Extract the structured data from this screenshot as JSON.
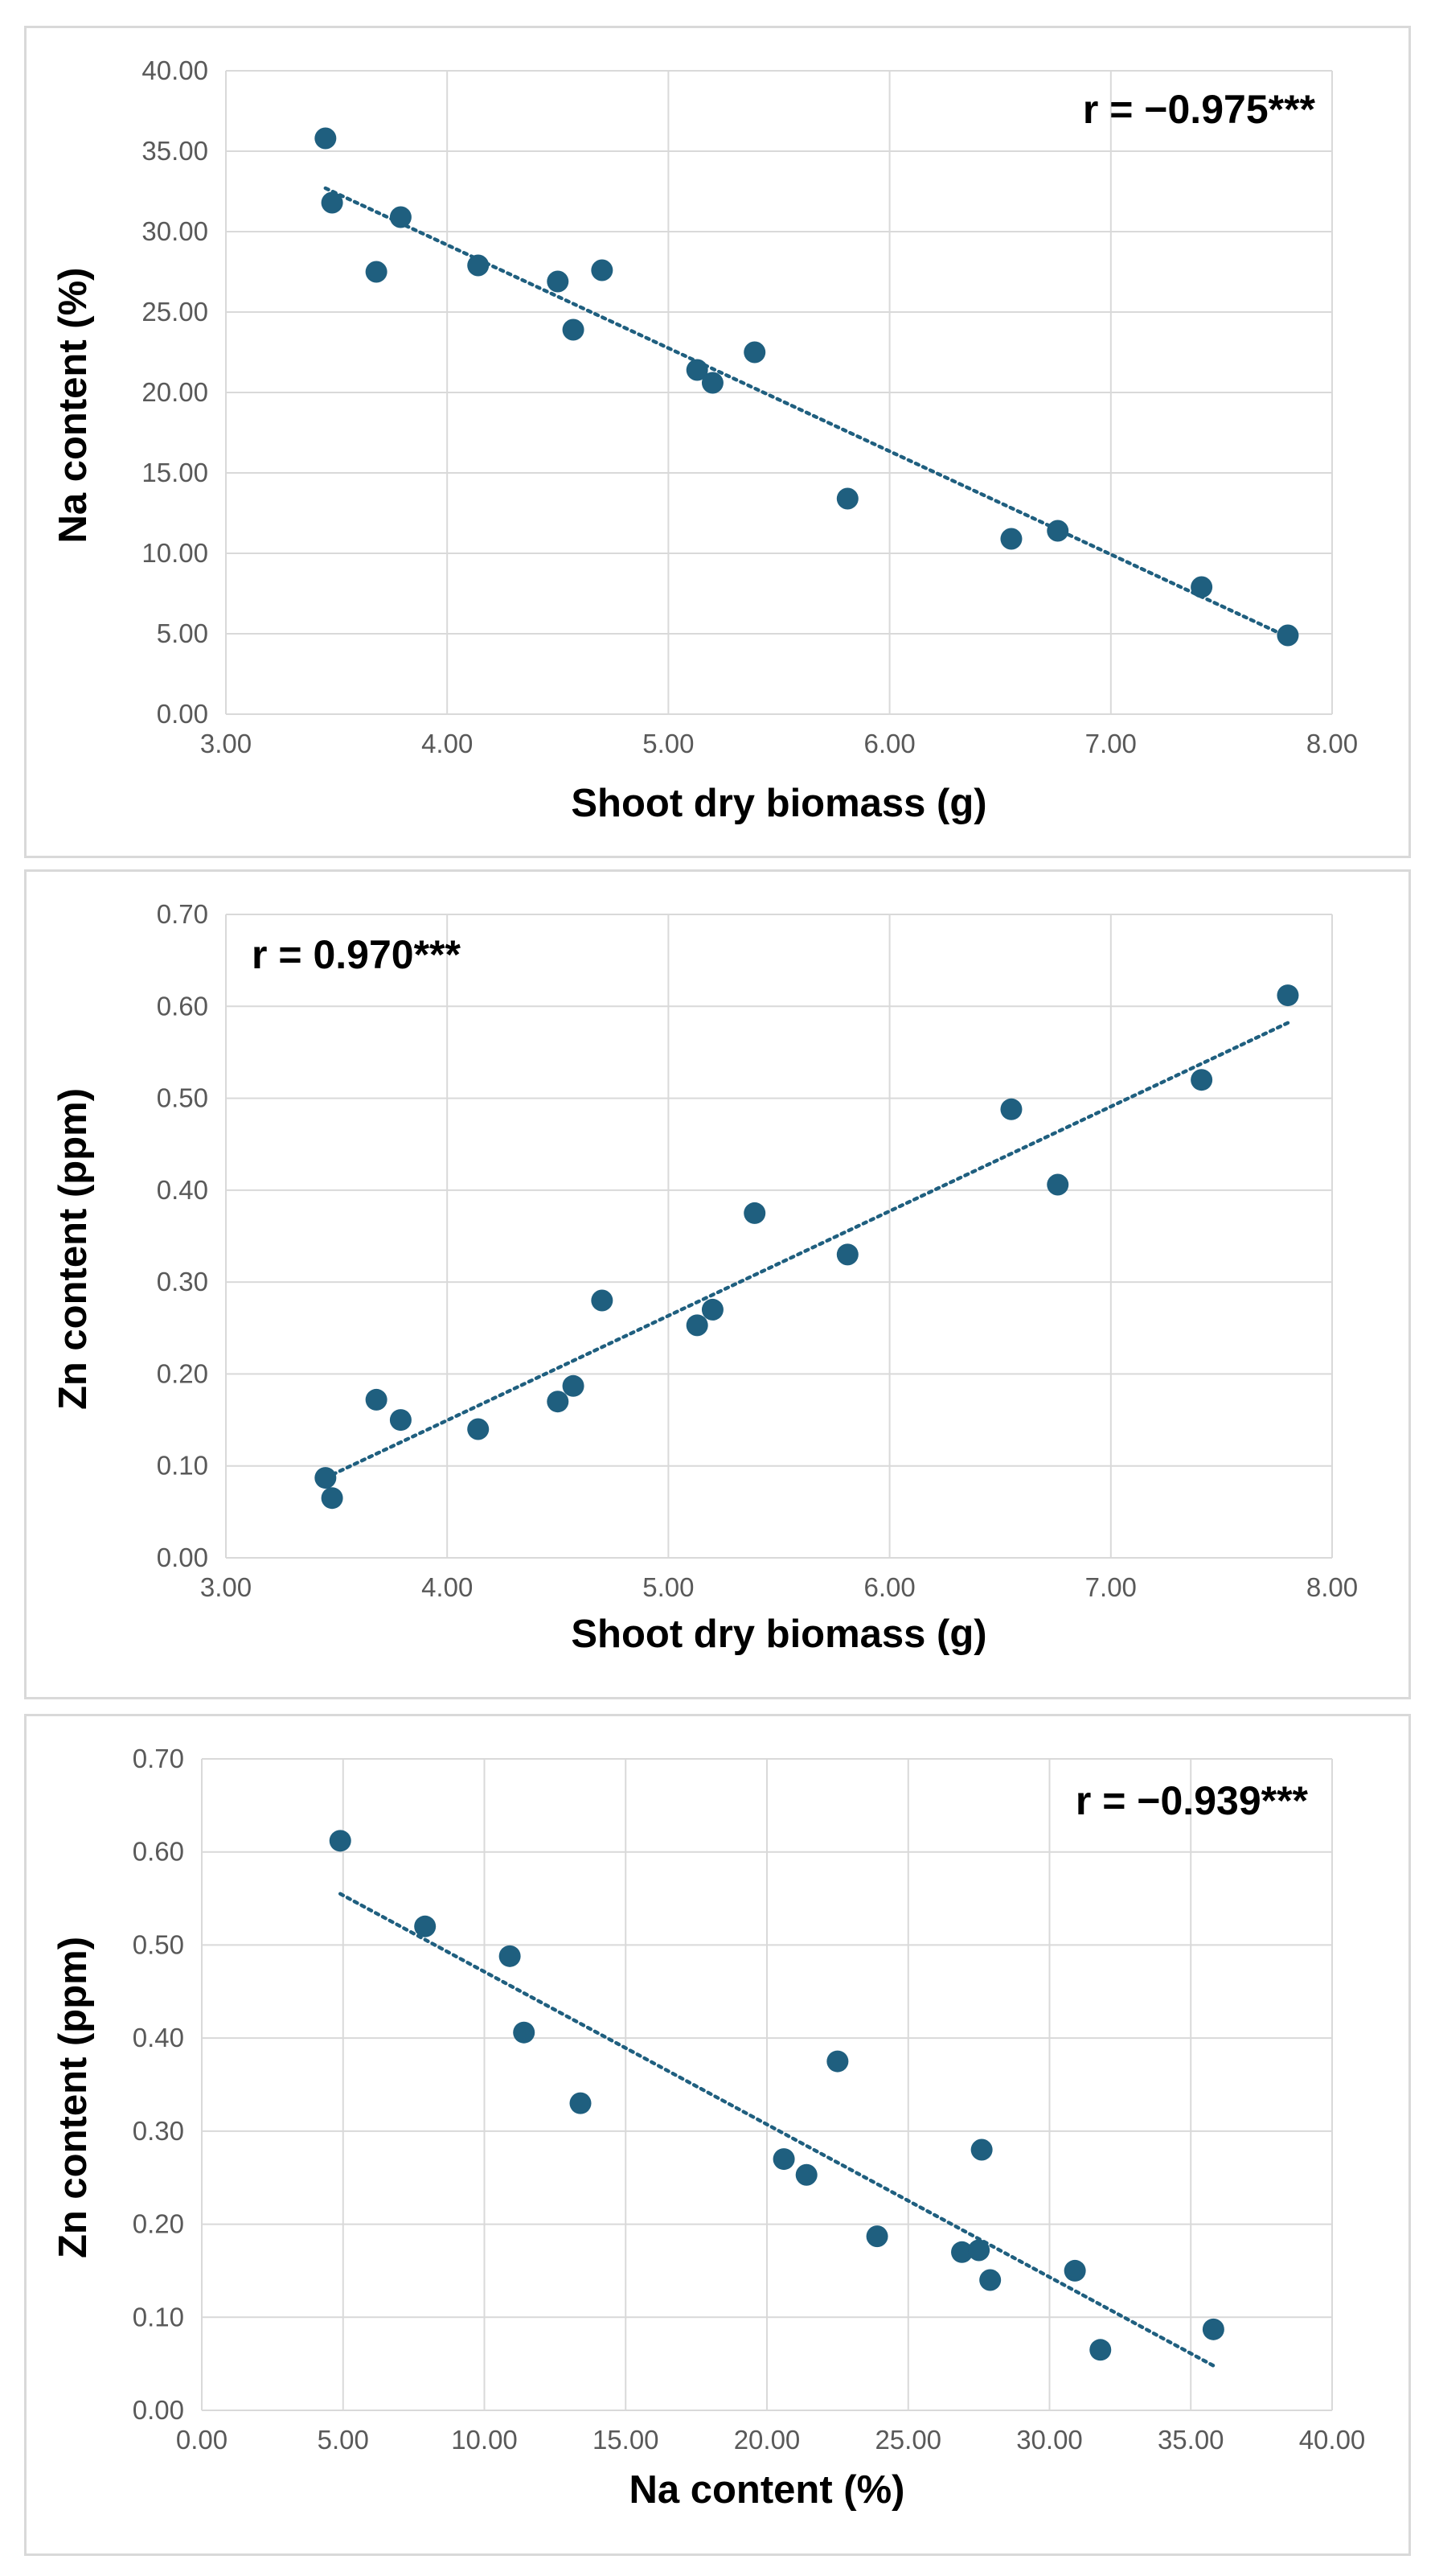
{
  "chart_data": [
    {
      "type": "scatter",
      "title": "",
      "annotation": "r = −0.975***",
      "xlabel": "Shoot dry biomass (g)",
      "ylabel": "Na content (%)",
      "xlim": [
        3,
        8
      ],
      "ylim": [
        0,
        40
      ],
      "x_ticks": [
        "3.00",
        "4.00",
        "5.00",
        "6.00",
        "7.00",
        "8.00"
      ],
      "y_ticks": [
        "0.00",
        "5.00",
        "10.00",
        "15.00",
        "20.00",
        "25.00",
        "30.00",
        "35.00",
        "40.00"
      ],
      "grid": true,
      "trendline": {
        "type": "linear",
        "style": "dotted",
        "x": [
          3.45,
          7.8
        ],
        "y": [
          32.7,
          4.8
        ]
      },
      "points": [
        {
          "x": 3.45,
          "y": 35.8
        },
        {
          "x": 3.48,
          "y": 31.8
        },
        {
          "x": 3.68,
          "y": 27.5
        },
        {
          "x": 3.79,
          "y": 30.9
        },
        {
          "x": 4.14,
          "y": 27.9
        },
        {
          "x": 4.5,
          "y": 26.9
        },
        {
          "x": 4.57,
          "y": 23.9
        },
        {
          "x": 4.7,
          "y": 27.6
        },
        {
          "x": 5.13,
          "y": 21.4
        },
        {
          "x": 5.2,
          "y": 20.6
        },
        {
          "x": 5.39,
          "y": 22.5
        },
        {
          "x": 5.81,
          "y": 13.4
        },
        {
          "x": 6.55,
          "y": 10.9
        },
        {
          "x": 6.76,
          "y": 11.4
        },
        {
          "x": 7.41,
          "y": 7.9
        },
        {
          "x": 7.8,
          "y": 4.9
        }
      ],
      "marker_color": "#1f5f7f",
      "trend_color": "#1f5f7f"
    },
    {
      "type": "scatter",
      "title": "",
      "annotation": "r = 0.970***",
      "xlabel": "Shoot dry biomass (g)",
      "ylabel": "Zn content (ppm)",
      "xlim": [
        3,
        8
      ],
      "ylim": [
        0,
        0.7
      ],
      "x_ticks": [
        "3.00",
        "4.00",
        "5.00",
        "6.00",
        "7.00",
        "8.00"
      ],
      "y_ticks": [
        "0.00",
        "0.10",
        "0.20",
        "0.30",
        "0.40",
        "0.50",
        "0.60",
        "0.70"
      ],
      "grid": true,
      "trendline": {
        "type": "linear",
        "style": "dotted",
        "x": [
          3.45,
          7.8
        ],
        "y": [
          0.087,
          0.582
        ]
      },
      "points": [
        {
          "x": 3.45,
          "y": 0.087
        },
        {
          "x": 3.48,
          "y": 0.065
        },
        {
          "x": 3.68,
          "y": 0.172
        },
        {
          "x": 3.79,
          "y": 0.15
        },
        {
          "x": 4.14,
          "y": 0.14
        },
        {
          "x": 4.5,
          "y": 0.17
        },
        {
          "x": 4.57,
          "y": 0.187
        },
        {
          "x": 4.7,
          "y": 0.28
        },
        {
          "x": 5.13,
          "y": 0.253
        },
        {
          "x": 5.2,
          "y": 0.27
        },
        {
          "x": 5.39,
          "y": 0.375
        },
        {
          "x": 5.81,
          "y": 0.33
        },
        {
          "x": 6.55,
          "y": 0.488
        },
        {
          "x": 6.76,
          "y": 0.406
        },
        {
          "x": 7.41,
          "y": 0.52
        },
        {
          "x": 7.8,
          "y": 0.612
        }
      ],
      "marker_color": "#1f5f7f",
      "trend_color": "#1f5f7f"
    },
    {
      "type": "scatter",
      "title": "",
      "annotation": "r = −0.939***",
      "xlabel": "Na content (%)",
      "ylabel": "Zn content (ppm)",
      "xlim": [
        0,
        40
      ],
      "ylim": [
        0,
        0.7
      ],
      "x_ticks": [
        "0.00",
        "5.00",
        "10.00",
        "15.00",
        "20.00",
        "25.00",
        "30.00",
        "35.00",
        "40.00"
      ],
      "y_ticks": [
        "0.00",
        "0.10",
        "0.20",
        "0.30",
        "0.40",
        "0.50",
        "0.60",
        "0.70"
      ],
      "grid": true,
      "trendline": {
        "type": "linear",
        "style": "dotted",
        "x": [
          4.9,
          35.8
        ],
        "y": [
          0.555,
          0.048
        ]
      },
      "points": [
        {
          "x": 4.9,
          "y": 0.612
        },
        {
          "x": 7.9,
          "y": 0.52
        },
        {
          "x": 10.9,
          "y": 0.488
        },
        {
          "x": 11.4,
          "y": 0.406
        },
        {
          "x": 13.4,
          "y": 0.33
        },
        {
          "x": 20.6,
          "y": 0.27
        },
        {
          "x": 21.4,
          "y": 0.253
        },
        {
          "x": 22.5,
          "y": 0.375
        },
        {
          "x": 23.9,
          "y": 0.187
        },
        {
          "x": 26.9,
          "y": 0.17
        },
        {
          "x": 27.5,
          "y": 0.172
        },
        {
          "x": 27.6,
          "y": 0.28
        },
        {
          "x": 27.9,
          "y": 0.14
        },
        {
          "x": 30.9,
          "y": 0.15
        },
        {
          "x": 31.8,
          "y": 0.065
        },
        {
          "x": 35.8,
          "y": 0.087
        }
      ],
      "marker_color": "#1f5f7f",
      "trend_color": "#1f5f7f"
    }
  ]
}
